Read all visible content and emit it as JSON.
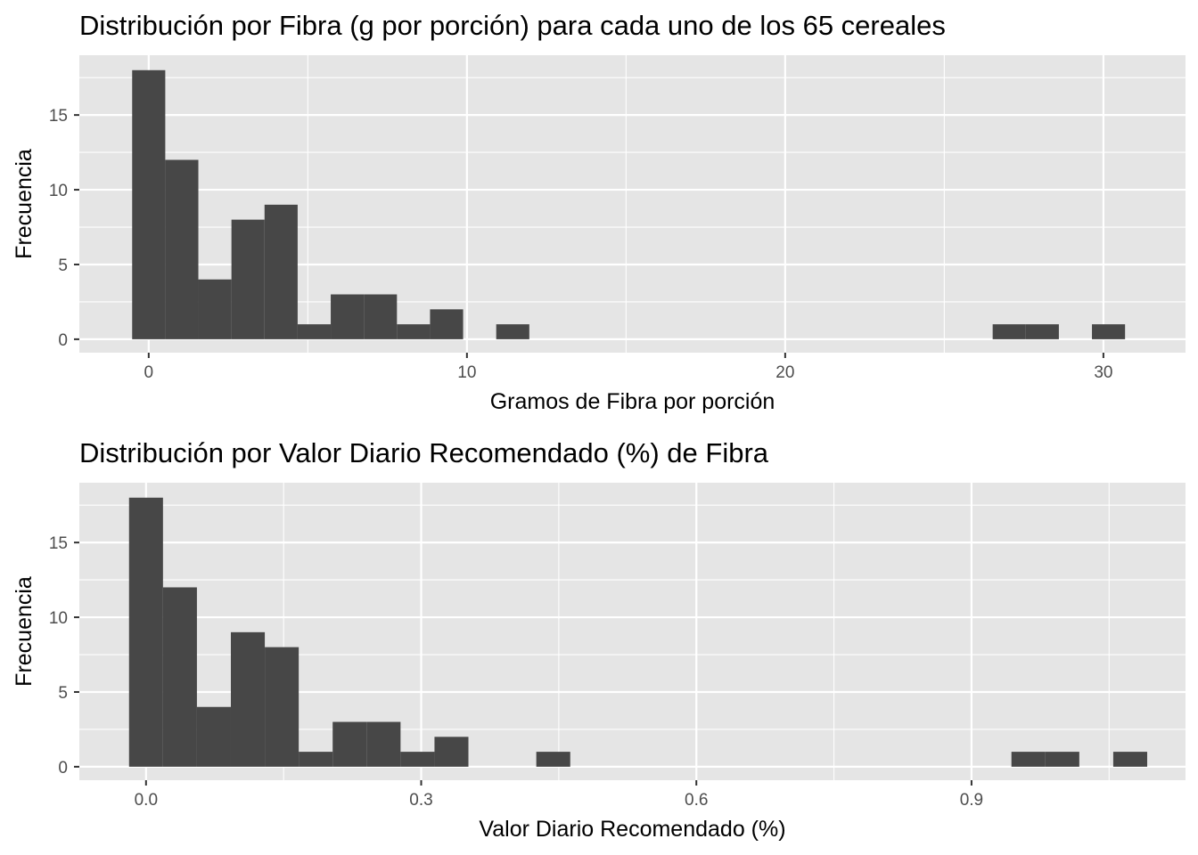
{
  "chart_data": [
    {
      "type": "bar",
      "title": "Distribución por Fibra (g por porción) para cada uno de los 65 cereales",
      "xlabel": "Gramos de Fibra por porción",
      "ylabel": "Frecuencia",
      "xlim": [
        -2.18,
        32.58
      ],
      "ylim": [
        -0.9,
        19.0
      ],
      "x_ticks": [
        0,
        10,
        20,
        30
      ],
      "x_tick_labels": [
        "0",
        "10",
        "20",
        "30"
      ],
      "y_ticks": [
        0,
        5,
        10,
        15
      ],
      "y_tick_labels": [
        "0",
        "5",
        "10",
        "15"
      ],
      "grid": true,
      "bins": [
        {
          "x0": -0.52,
          "x1": 0.52,
          "count": 18
        },
        {
          "x0": 0.52,
          "x1": 1.56,
          "count": 12
        },
        {
          "x0": 1.56,
          "x1": 2.6,
          "count": 4
        },
        {
          "x0": 2.6,
          "x1": 3.64,
          "count": 8
        },
        {
          "x0": 3.64,
          "x1": 4.68,
          "count": 9
        },
        {
          "x0": 4.68,
          "x1": 5.72,
          "count": 1
        },
        {
          "x0": 5.72,
          "x1": 6.76,
          "count": 3
        },
        {
          "x0": 6.76,
          "x1": 7.8,
          "count": 3
        },
        {
          "x0": 7.8,
          "x1": 8.84,
          "count": 1
        },
        {
          "x0": 8.84,
          "x1": 9.88,
          "count": 2
        },
        {
          "x0": 10.92,
          "x1": 11.96,
          "count": 1
        },
        {
          "x0": 26.52,
          "x1": 27.56,
          "count": 1
        },
        {
          "x0": 27.56,
          "x1": 28.6,
          "count": 1
        },
        {
          "x0": 29.64,
          "x1": 30.68,
          "count": 1
        }
      ]
    },
    {
      "type": "bar",
      "title": "Distribución por Valor Diario Recomendado (%) de Fibra",
      "xlabel": "Valor Diario Recomendado (%)",
      "ylabel": "Frecuencia",
      "xlim": [
        -0.0727,
        1.1333
      ],
      "ylim": [
        -0.9,
        19.0
      ],
      "x_ticks": [
        0.0,
        0.3,
        0.6,
        0.9
      ],
      "x_tick_labels": [
        "0.0",
        "0.3",
        "0.6",
        "0.9"
      ],
      "y_ticks": [
        0,
        5,
        10,
        15
      ],
      "y_tick_labels": [
        "0",
        "5",
        "10",
        "15"
      ],
      "grid": true,
      "bins": [
        {
          "x0": -0.0185,
          "x1": 0.0185,
          "count": 18
        },
        {
          "x0": 0.0185,
          "x1": 0.0555,
          "count": 12
        },
        {
          "x0": 0.0555,
          "x1": 0.0925,
          "count": 4
        },
        {
          "x0": 0.0925,
          "x1": 0.1295,
          "count": 9
        },
        {
          "x0": 0.1295,
          "x1": 0.1665,
          "count": 8
        },
        {
          "x0": 0.1665,
          "x1": 0.2035,
          "count": 1
        },
        {
          "x0": 0.2035,
          "x1": 0.2405,
          "count": 3
        },
        {
          "x0": 0.2405,
          "x1": 0.2775,
          "count": 3
        },
        {
          "x0": 0.2775,
          "x1": 0.3145,
          "count": 1
        },
        {
          "x0": 0.3145,
          "x1": 0.3515,
          "count": 2
        },
        {
          "x0": 0.4255,
          "x1": 0.4625,
          "count": 1
        },
        {
          "x0": 0.9435,
          "x1": 0.9805,
          "count": 1
        },
        {
          "x0": 0.9805,
          "x1": 1.0175,
          "count": 1
        },
        {
          "x0": 1.0545,
          "x1": 1.0915,
          "count": 1
        }
      ]
    }
  ]
}
